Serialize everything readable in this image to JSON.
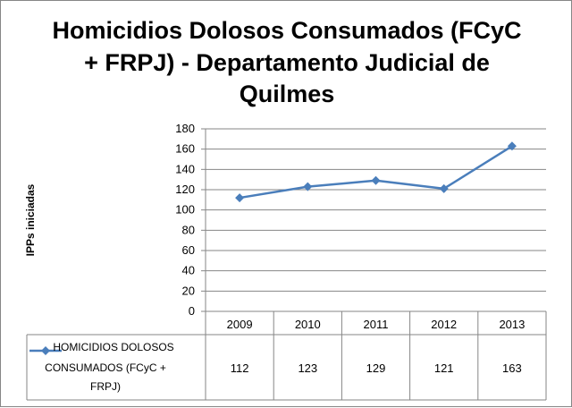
{
  "chart_data": {
    "type": "line",
    "title_lines": [
      "Homicidios Dolosos Consumados (FCyC",
      "+ FRPJ) - Departamento Judicial de",
      "Quilmes"
    ],
    "xlabel": "",
    "ylabel": "IPPs iniciadas",
    "categories": [
      "2009",
      "2010",
      "2011",
      "2012",
      "2013"
    ],
    "ylim": [
      0,
      180
    ],
    "yticks": [
      0,
      20,
      40,
      60,
      80,
      100,
      120,
      140,
      160,
      180
    ],
    "grid": true,
    "legend": "data-table",
    "series": [
      {
        "name_lines": [
          "HOMICIDIOS DOLOSOS",
          "CONSUMADOS (FCyC +",
          "FRPJ)"
        ],
        "values": [
          112,
          123,
          129,
          121,
          163
        ],
        "color": "#4a7ebb"
      }
    ]
  }
}
